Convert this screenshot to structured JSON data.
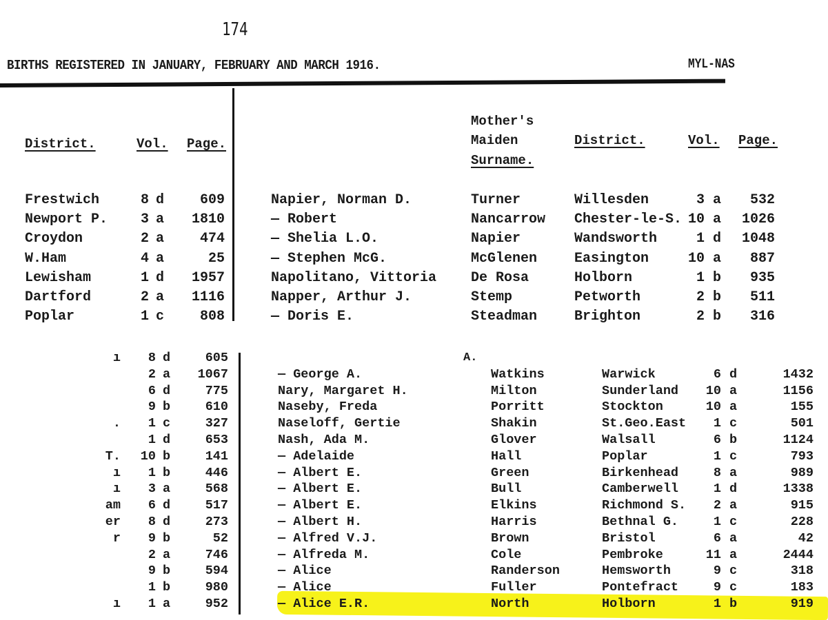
{
  "page_number": "174",
  "title": "BIRTHS REGISTERED IN JANUARY, FEBRUARY AND MARCH 1916.",
  "range": "MYL-NAS",
  "headers": {
    "district": "District.",
    "vol": "Vol.",
    "page": "Page.",
    "mothers_1": "Mother's",
    "mothers_2": "Maiden",
    "mothers_3": "Surname.",
    "district2": "District.",
    "vol2": "Vol.",
    "page2": "Page."
  },
  "upper": {
    "left": [
      {
        "district": "Frestwich",
        "vol": "8",
        "sub": "d",
        "page": "609"
      },
      {
        "district": "Newport P.",
        "vol": "3",
        "sub": "a",
        "page": "1810"
      },
      {
        "district": "Croydon",
        "vol": "2",
        "sub": "a",
        "page": "474"
      },
      {
        "district": "W.Ham",
        "vol": "4",
        "sub": "a",
        "page": "25"
      },
      {
        "district": "Lewisham",
        "vol": "1",
        "sub": "d",
        "page": "1957"
      },
      {
        "district": "Dartford",
        "vol": "2",
        "sub": "a",
        "page": "1116"
      },
      {
        "district": "Poplar",
        "vol": "1",
        "sub": "c",
        "page": "808"
      }
    ],
    "right": [
      {
        "name": "Napier, Norman D.",
        "surname": "Turner",
        "district": "Willesden",
        "vol": "3",
        "sub": "a",
        "page": "532"
      },
      {
        "name": "— Robert",
        "surname": "Nancarrow",
        "district": "Chester-le-S.",
        "vol": "10",
        "sub": "a",
        "page": "1026"
      },
      {
        "name": "— Shelia L.O.",
        "surname": "Napier",
        "district": "Wandsworth",
        "vol": "1",
        "sub": "d",
        "page": "1048"
      },
      {
        "name": "— Stephen McG.",
        "surname": "McGlenen",
        "district": "Easington",
        "vol": "10",
        "sub": "a",
        "page": "887"
      },
      {
        "name": "Napolitano, Vittoria",
        "surname": "De Rosa",
        "district": "Holborn",
        "vol": "1",
        "sub": "b",
        "page": "935"
      },
      {
        "name": "Napper, Arthur J.",
        "surname": "Stemp",
        "district": "Petworth",
        "vol": "2",
        "sub": "b",
        "page": "511"
      },
      {
        "name": "— Doris E.",
        "surname": "Steadman",
        "district": "Brighton",
        "vol": "2",
        "sub": "b",
        "page": "316"
      }
    ]
  },
  "lower": {
    "section_letter": "A.",
    "left": [
      {
        "district": "ı",
        "vol": "8",
        "sub": "d",
        "page": "605"
      },
      {
        "district": "",
        "vol": "2",
        "sub": "a",
        "page": "1067"
      },
      {
        "district": "",
        "vol": "6",
        "sub": "d",
        "page": "775"
      },
      {
        "district": "",
        "vol": "9",
        "sub": "b",
        "page": "610"
      },
      {
        "district": ".",
        "vol": "1",
        "sub": "c",
        "page": "327"
      },
      {
        "district": "",
        "vol": "1",
        "sub": "d",
        "page": "653"
      },
      {
        "district": "T.",
        "vol": "10",
        "sub": "b",
        "page": "141"
      },
      {
        "district": "ı",
        "vol": "1",
        "sub": "b",
        "page": "446"
      },
      {
        "district": "ı",
        "vol": "3",
        "sub": "a",
        "page": "568"
      },
      {
        "district": "am",
        "vol": "6",
        "sub": "d",
        "page": "517"
      },
      {
        "district": "er",
        "vol": "8",
        "sub": "d",
        "page": "273"
      },
      {
        "district": "r",
        "vol": "9",
        "sub": "b",
        "page": "52"
      },
      {
        "district": "",
        "vol": "2",
        "sub": "a",
        "page": "746"
      },
      {
        "district": "",
        "vol": "9",
        "sub": "b",
        "page": "594"
      },
      {
        "district": "",
        "vol": "1",
        "sub": "b",
        "page": "980"
      },
      {
        "district": "ı",
        "vol": "1",
        "sub": "a",
        "page": "952"
      }
    ],
    "right": [
      {
        "name": "",
        "surname": "",
        "district": "",
        "vol": "",
        "sub": "",
        "page": ""
      },
      {
        "name": "— George A.",
        "surname": "Watkins",
        "district": "Warwick",
        "vol": "6",
        "sub": "d",
        "page": "1432"
      },
      {
        "name": "Nary, Margaret H.",
        "surname": "Milton",
        "district": "Sunderland",
        "vol": "10",
        "sub": "a",
        "page": "1156"
      },
      {
        "name": "Naseby, Freda",
        "surname": "Porritt",
        "district": "Stockton",
        "vol": "10",
        "sub": "a",
        "page": "155"
      },
      {
        "name": "Naseloff, Gertie",
        "surname": "Shakin",
        "district": "St.Geo.East",
        "vol": "1",
        "sub": "c",
        "page": "501"
      },
      {
        "name": "Nash, Ada M.",
        "surname": "Glover",
        "district": "Walsall",
        "vol": "6",
        "sub": "b",
        "page": "1124"
      },
      {
        "name": "— Adelaide",
        "surname": "Hall",
        "district": "Poplar",
        "vol": "1",
        "sub": "c",
        "page": "793"
      },
      {
        "name": "— Albert E.",
        "surname": "Green",
        "district": "Birkenhead",
        "vol": "8",
        "sub": "a",
        "page": "989"
      },
      {
        "name": "— Albert E.",
        "surname": "Bull",
        "district": "Camberwell",
        "vol": "1",
        "sub": "d",
        "page": "1338"
      },
      {
        "name": "— Albert E.",
        "surname": "Elkins",
        "district": "Richmond S.",
        "vol": "2",
        "sub": "a",
        "page": "915"
      },
      {
        "name": "— Albert H.",
        "surname": "Harris",
        "district": "Bethnal G.",
        "vol": "1",
        "sub": "c",
        "page": "228"
      },
      {
        "name": "— Alfred V.J.",
        "surname": "Brown",
        "district": "Bristol",
        "vol": "6",
        "sub": "a",
        "page": "42"
      },
      {
        "name": "— Alfreda M.",
        "surname": "Cole",
        "district": "Pembroke",
        "vol": "11",
        "sub": "a",
        "page": "2444"
      },
      {
        "name": "— Alice",
        "surname": "Randerson",
        "district": "Hemsworth",
        "vol": "9",
        "sub": "c",
        "page": "318"
      },
      {
        "name": "— Alice",
        "surname": "Fuller",
        "district": "Pontefract",
        "vol": "9",
        "sub": "c",
        "page": "183"
      },
      {
        "name": "— Alice E.R.",
        "surname": "North",
        "district": "Holborn",
        "vol": "1",
        "sub": "b",
        "page": "919"
      }
    ]
  },
  "highlight_color": "#f7f21a"
}
